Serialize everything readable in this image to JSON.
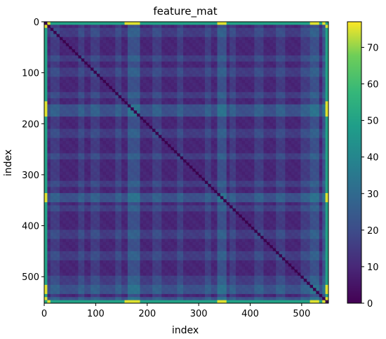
{
  "chart_data": {
    "type": "heatmap",
    "title": "feature_mat",
    "xlabel": "index",
    "ylabel": "index",
    "xlim": [
      0,
      552
    ],
    "ylim": [
      552,
      0
    ],
    "x_ticks": [
      0,
      100,
      200,
      300,
      400,
      500
    ],
    "y_ticks": [
      0,
      100,
      200,
      300,
      400,
      500
    ],
    "matrix_size": 552,
    "colormap": "viridis",
    "colorbar": {
      "min": 0,
      "max": 77,
      "ticks": [
        0,
        10,
        20,
        30,
        40,
        50,
        60,
        70
      ]
    },
    "diagonal_value": 0,
    "typical_value": 8,
    "border_value": 50,
    "border_peak_value": 75,
    "band_indices": [
      0,
      21,
      71,
      98,
      144,
      167,
      178,
      218,
      264,
      318,
      345,
      365,
      417,
      460,
      508,
      525,
      549
    ],
    "strong_band_indices": [
      0,
      167,
      178,
      345,
      525,
      549
    ],
    "grid": false,
    "legend": "colorbar-right"
  }
}
